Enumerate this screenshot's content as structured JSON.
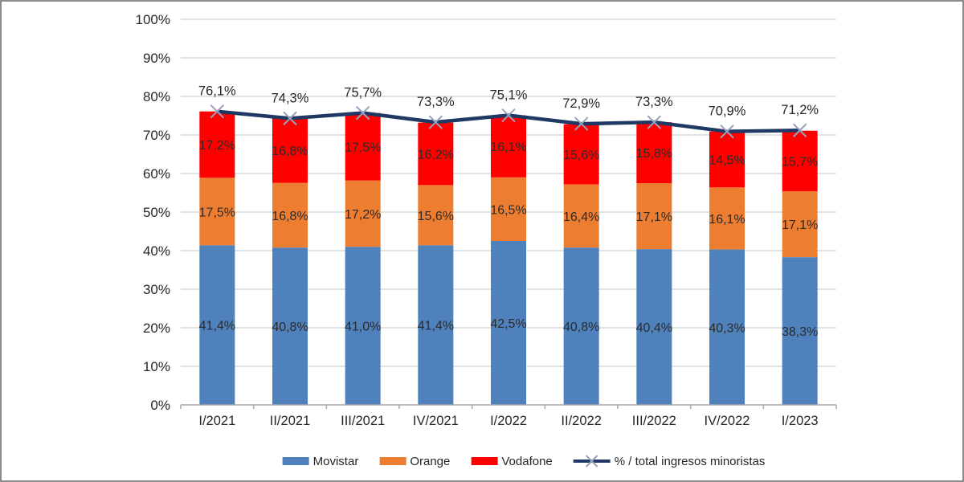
{
  "frame": {
    "background": "#ffffff",
    "border_color": "#8b8b8b"
  },
  "chart_data": {
    "type": "bar",
    "subtype": "stacked-bar-with-line",
    "categories": [
      "I/2021",
      "II/2021",
      "III/2021",
      "IV/2021",
      "I/2022",
      "II/2022",
      "III/2022",
      "IV/2022",
      "I/2023"
    ],
    "series": [
      {
        "name": "Movistar",
        "color": "#4F81BD",
        "values": [
          41.4,
          40.8,
          41.0,
          41.4,
          42.5,
          40.8,
          40.4,
          40.3,
          38.3
        ],
        "labels": [
          "41,4%",
          "40,8%",
          "41,0%",
          "41,4%",
          "42,5%",
          "40,8%",
          "40,4%",
          "40,3%",
          "38,3%"
        ]
      },
      {
        "name": "Orange",
        "color": "#ED7D31",
        "values": [
          17.5,
          16.8,
          17.2,
          15.6,
          16.5,
          16.4,
          17.1,
          16.1,
          17.1
        ],
        "labels": [
          "17,5%",
          "16,8%",
          "17,2%",
          "15,6%",
          "16,5%",
          "16,4%",
          "17,1%",
          "16,1%",
          "17,1%"
        ]
      },
      {
        "name": "Vodafone",
        "color": "#FF0000",
        "values": [
          17.2,
          16.8,
          17.5,
          16.2,
          16.1,
          15.6,
          15.8,
          14.5,
          15.7
        ],
        "labels": [
          "17,2%",
          "16,8%",
          "17,5%",
          "16,2%",
          "16,1%",
          "15,6%",
          "15,8%",
          "14,5%",
          "15,7%"
        ]
      }
    ],
    "line_series": {
      "name": "% / total ingresos minoristas",
      "color": "#1F3864",
      "marker": "x-marker",
      "marker_color": "#97A3BE",
      "values": [
        76.1,
        74.3,
        75.7,
        73.3,
        75.1,
        72.9,
        73.3,
        70.9,
        71.2
      ],
      "labels": [
        "76,1%",
        "74,3%",
        "75,7%",
        "73,3%",
        "75,1%",
        "72,9%",
        "73,3%",
        "70,9%",
        "71,2%"
      ]
    },
    "title": "",
    "xlabel": "",
    "ylabel": "",
    "ylim": [
      0,
      100
    ],
    "y_tick_step": 10,
    "y_tick_labels": [
      "0%",
      "10%",
      "20%",
      "30%",
      "40%",
      "50%",
      "60%",
      "70%",
      "80%",
      "90%",
      "100%"
    ],
    "decimal_separator": ",",
    "grid": true,
    "gridline_color": "#C9D4D4",
    "axis_color": "#A6A6A6",
    "label_color": "#2B2B2B",
    "legend_position": "bottom"
  }
}
